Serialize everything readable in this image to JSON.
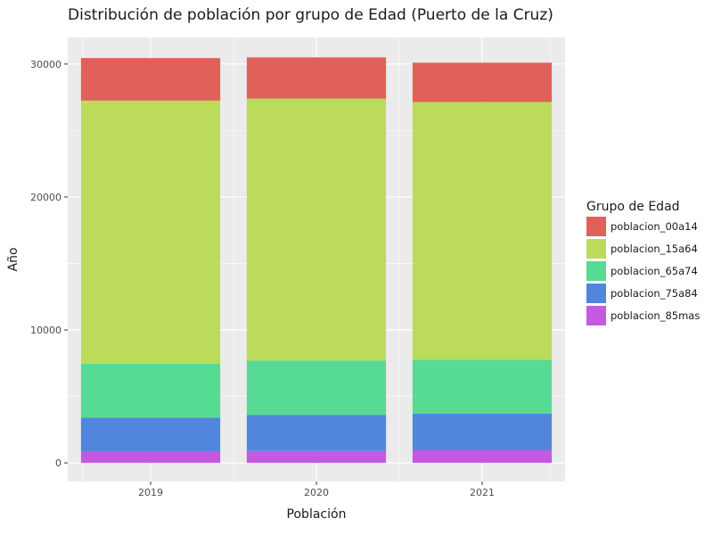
{
  "chart_data": {
    "type": "bar",
    "stacked": true,
    "title": "Distribución de población por grupo de Edad (Puerto de la Cruz)",
    "xlabel": "Población",
    "ylabel": "Año",
    "categories": [
      "2019",
      "2020",
      "2021"
    ],
    "ylim": [
      -1400,
      32000
    ],
    "yticks": [
      0,
      10000,
      20000,
      30000
    ],
    "ytick_labels": [
      "0",
      "10000",
      "20000",
      "30000"
    ],
    "grid": true,
    "legend": {
      "title": "Grupo de Edad",
      "placement": "right"
    },
    "series": [
      {
        "name": "poblacion_85mas",
        "color": "#c55ae0",
        "values": [
          850,
          900,
          950
        ]
      },
      {
        "name": "poblacion_75a84",
        "color": "#5285dc",
        "values": [
          2550,
          2700,
          2750
        ]
      },
      {
        "name": "poblacion_65a74",
        "color": "#57da93",
        "values": [
          4050,
          4100,
          4050
        ]
      },
      {
        "name": "poblacion_15a64",
        "color": "#bcdb5a",
        "values": [
          19800,
          19700,
          19400
        ]
      },
      {
        "name": "poblacion_00a14",
        "color": "#e0605a",
        "values": [
          3200,
          3100,
          2950
        ]
      }
    ],
    "legend_order": [
      "poblacion_00a14",
      "poblacion_15a64",
      "poblacion_65a74",
      "poblacion_75a84",
      "poblacion_85mas"
    ]
  }
}
